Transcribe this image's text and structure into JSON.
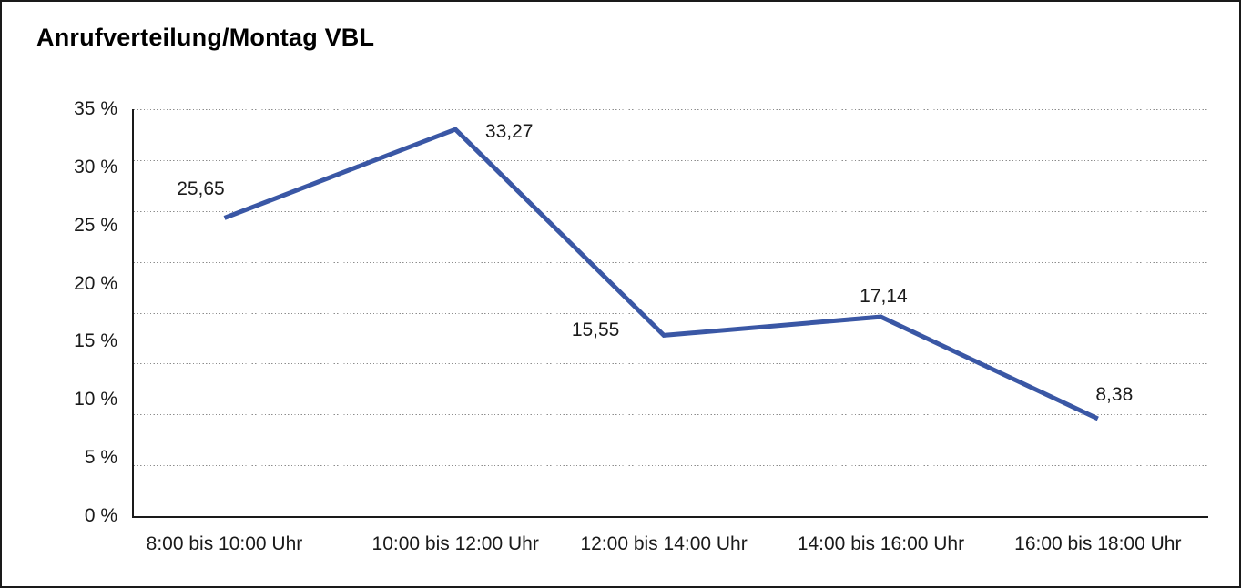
{
  "window": {
    "title": "Anrufverteilung/Montag VBL"
  },
  "chart_data": {
    "type": "line",
    "title": "Anrufverteilung/Montag VBL",
    "categories": [
      "8:00 bis 10:00 Uhr",
      "10:00 bis 12:00 Uhr",
      "12:00 bis 14:00 Uhr",
      "14:00 bis 16:00 Uhr",
      "16:00 bis 18:00 Uhr"
    ],
    "values": [
      25.65,
      33.27,
      15.55,
      17.14,
      8.38
    ],
    "value_labels": [
      "25,65",
      "33,27",
      "15,55",
      "17,14",
      "8,38"
    ],
    "y_tick_labels": [
      "35 %",
      "30 %",
      "25 %",
      "20 %",
      "15 %",
      "10 %",
      "5 %",
      "0 %"
    ],
    "ylim": [
      0,
      35
    ],
    "xlabel": "",
    "ylabel": "",
    "legend": "none",
    "grid": "horizontal-dotted-8-divisions",
    "line_color": "#3A57A5",
    "axis_color": "#1a1a1a",
    "grid_color": "#8c8c8c",
    "text_color": "#1a1a1a"
  }
}
